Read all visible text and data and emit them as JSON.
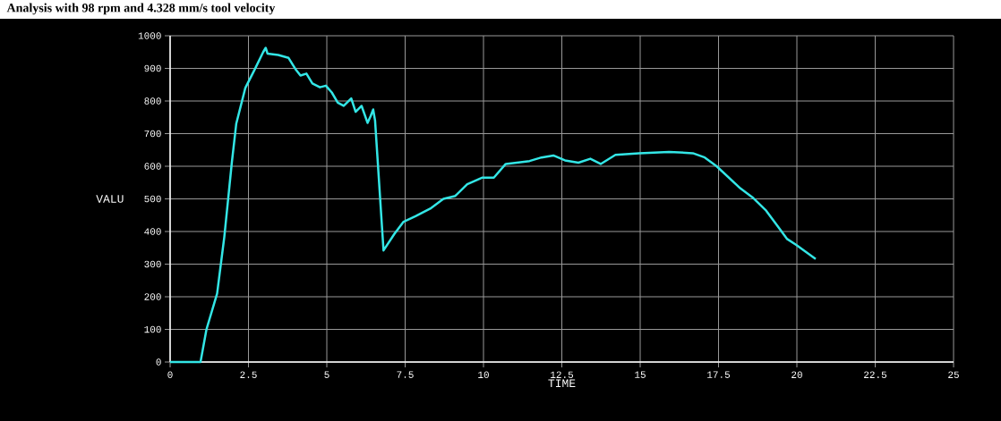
{
  "chart_data": {
    "type": "line",
    "title": "Analysis with 98 rpm and 4.328 mm/s tool velocity",
    "xlabel": "TIME",
    "ylabel": "VALU",
    "color": "#33e6e6",
    "grid": true,
    "marker": "none",
    "line_style": "solid",
    "x": [
      0,
      0.97,
      1.16,
      1.5,
      1.73,
      1.97,
      2.11,
      2.4,
      2.69,
      2.97,
      3.05,
      3.11,
      3.45,
      3.78,
      4.02,
      4.16,
      4.35,
      4.54,
      4.78,
      4.97,
      5.16,
      5.35,
      5.54,
      5.78,
      5.92,
      6.11,
      6.3,
      6.4,
      6.48,
      6.54,
      6.81,
      7.16,
      7.45,
      7.83,
      8.3,
      8.72,
      9.1,
      9.48,
      9.95,
      10.33,
      10.71,
      11.47,
      11.85,
      12.23,
      12.6,
      13.03,
      13.41,
      13.74,
      14.21,
      14.97,
      15.92,
      16.68,
      17.06,
      17.44,
      18.2,
      18.58,
      19.02,
      19.69,
      19.98,
      20.6
    ],
    "values": [
      0,
      0,
      100,
      210,
      384,
      612,
      730,
      840,
      895,
      950,
      963,
      945,
      941,
      932,
      895,
      878,
      884,
      854,
      842,
      847,
      826,
      795,
      785,
      808,
      767,
      785,
      733,
      754,
      774,
      740,
      342,
      393,
      430,
      447,
      470,
      500,
      509,
      545,
      565,
      565,
      607,
      616,
      627,
      633,
      618,
      611,
      623,
      607,
      635,
      640,
      644,
      640,
      627,
      600,
      532,
      505,
      464,
      377,
      359,
      316
    ],
    "xlim": [
      0,
      25
    ],
    "ylim": [
      0,
      1000
    ],
    "xticks": [
      0,
      2.5,
      5,
      7.5,
      10,
      12.5,
      15,
      17.5,
      20,
      22.5,
      25
    ],
    "yticks": [
      0,
      100,
      200,
      300,
      400,
      500,
      600,
      700,
      800,
      900,
      1000
    ]
  }
}
